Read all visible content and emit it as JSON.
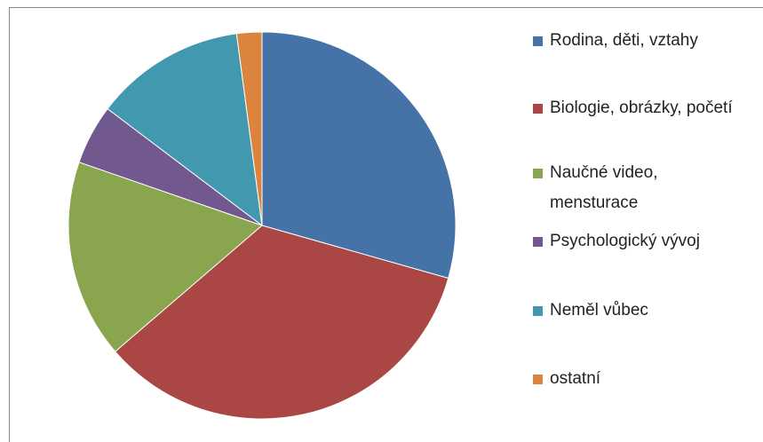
{
  "chart_data": {
    "type": "pie",
    "categories": [
      "Rodina, děti, vztahy",
      "Biologie, obrázky, početí",
      "Naučné video, mensturace",
      "Psychologický vývoj",
      "Neměl vůbec",
      "ostatní"
    ],
    "values": [
      29.4,
      34.3,
      16.6,
      5,
      12.6,
      2.1
    ],
    "colors": [
      "#4572a7",
      "#aa4643",
      "#89a54e",
      "#71588f",
      "#4198af",
      "#db843d"
    ],
    "legend": "right"
  }
}
